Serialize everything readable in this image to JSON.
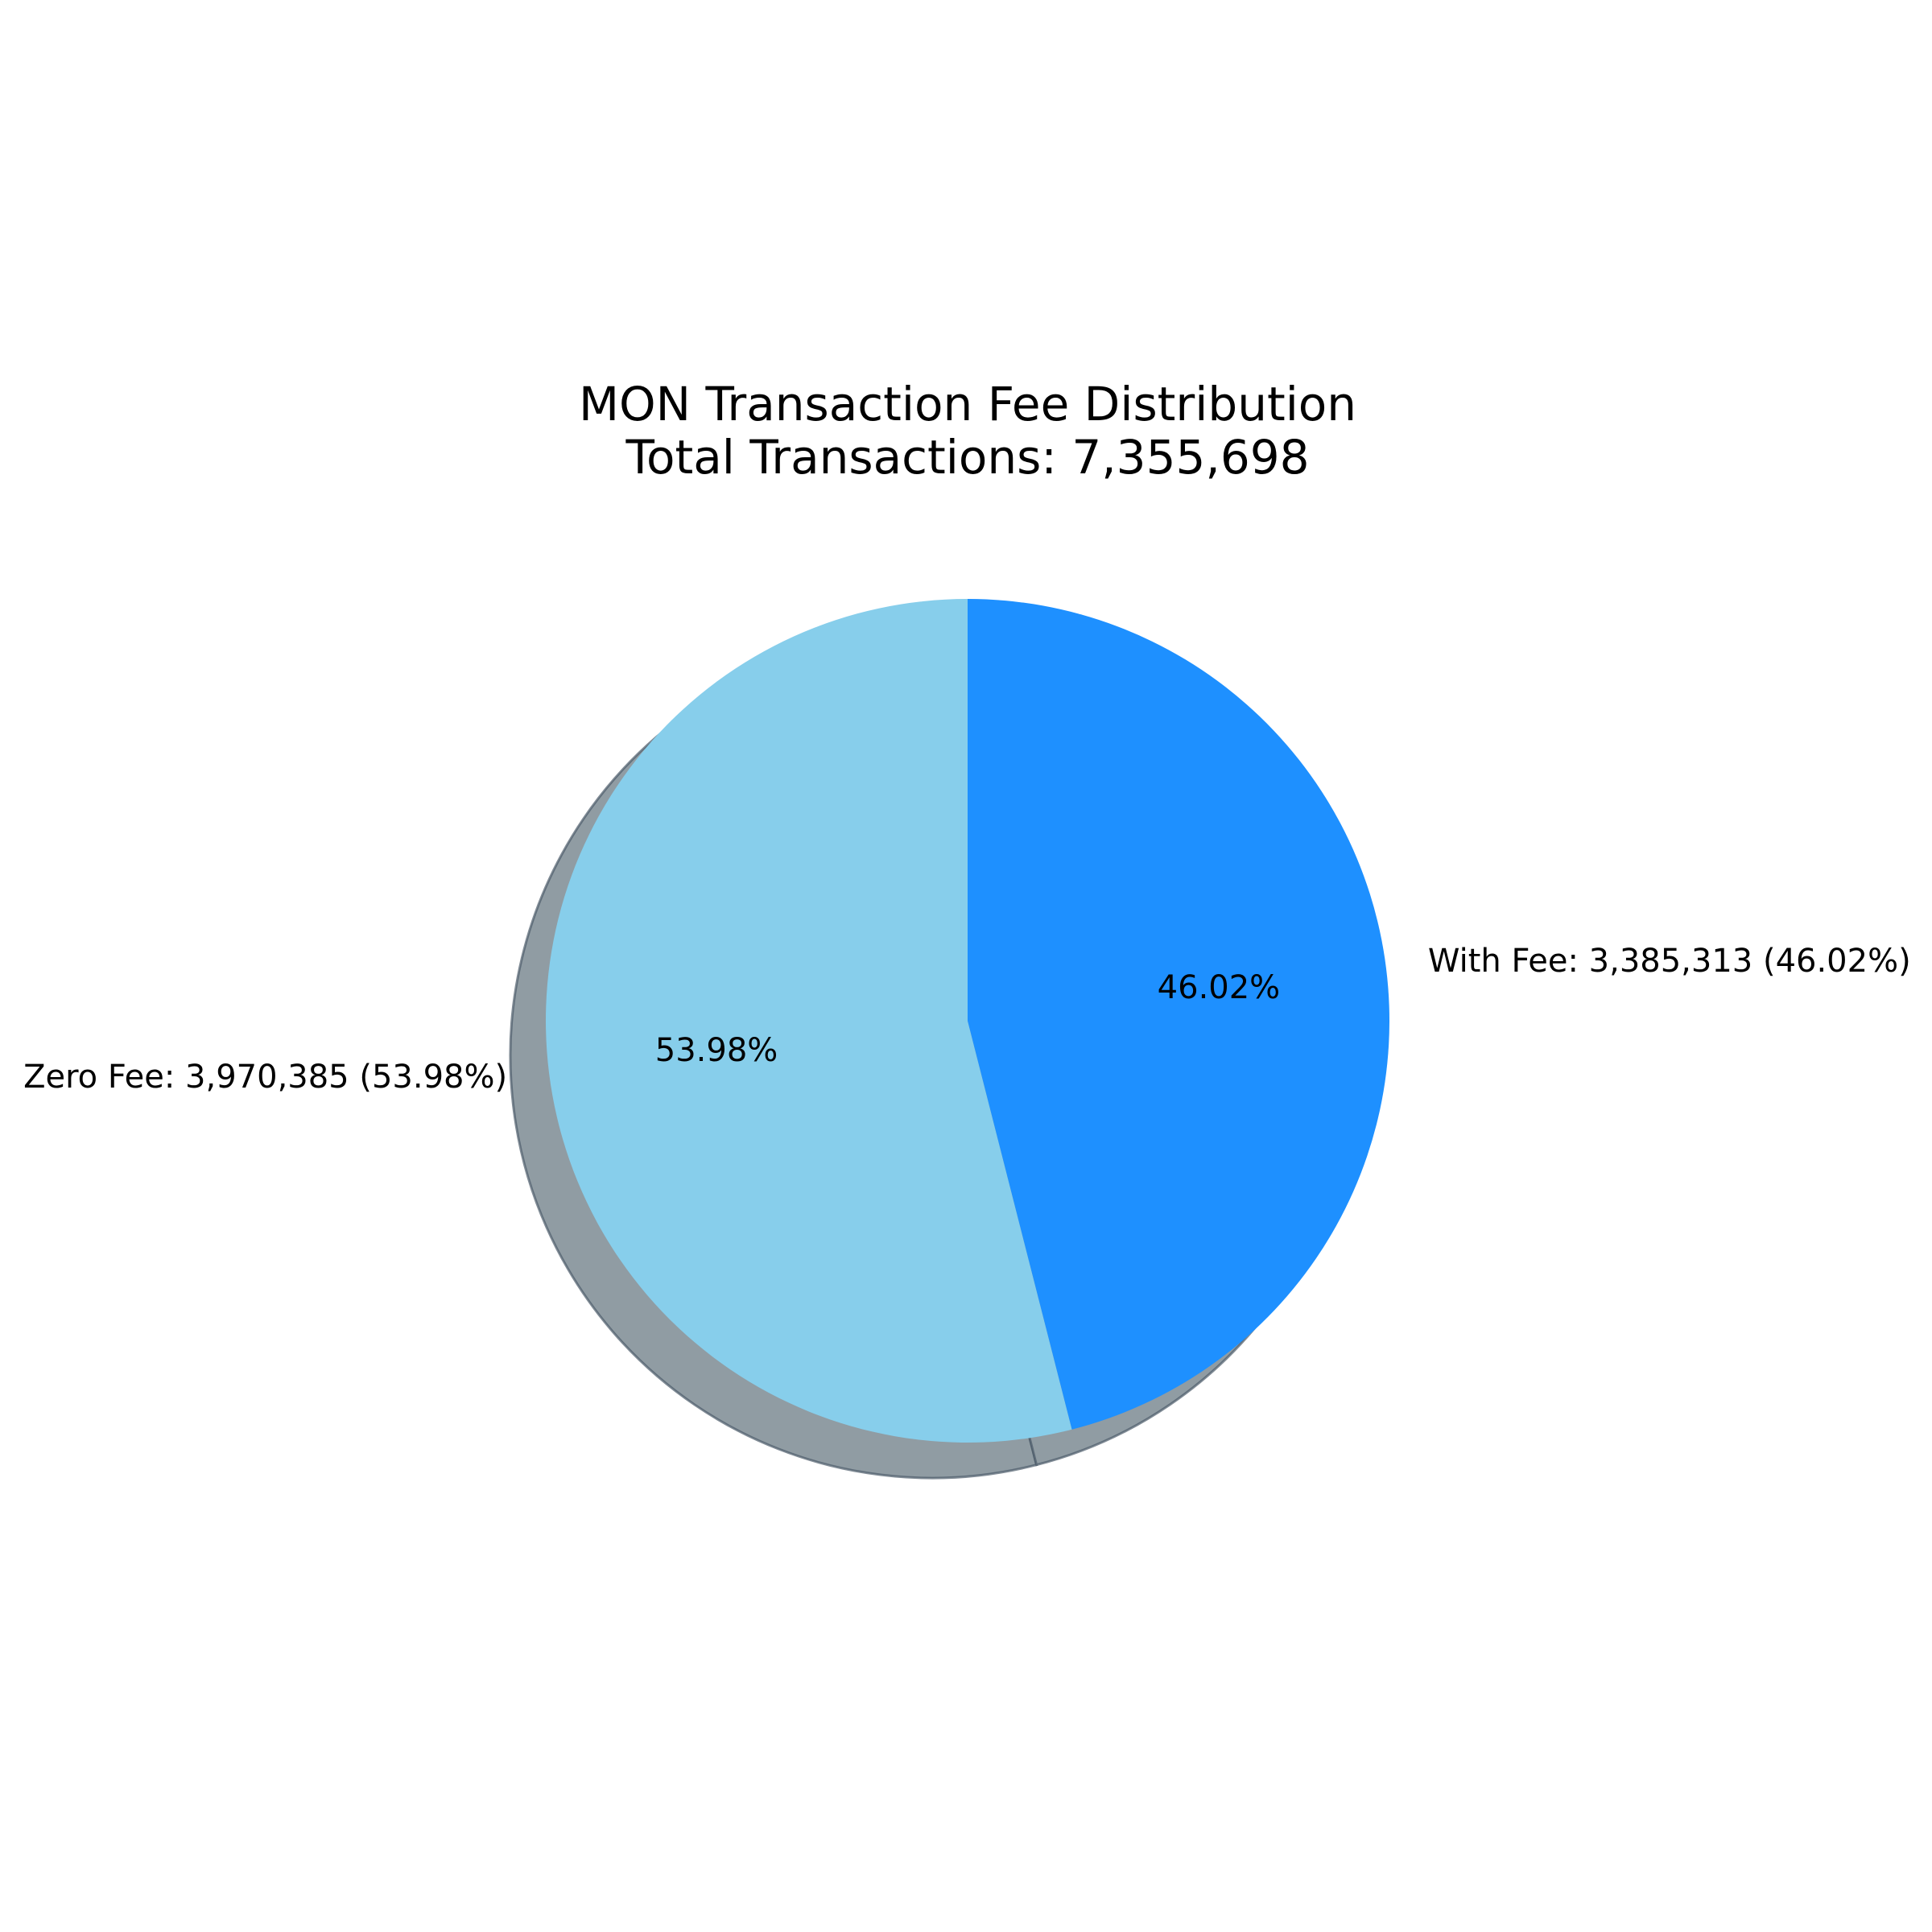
{
  "chart_data": {
    "type": "pie",
    "title": "MON Transaction Fee Distribution",
    "subtitle": "Total Transactions: 7,355,698",
    "slices": [
      {
        "name": "Zero Fee",
        "value": 3970385,
        "percent": 53.98,
        "label": "Zero Fee: 3,970,385 (53.98%)",
        "pct_label": "53.98%",
        "color": "#87CEEB"
      },
      {
        "name": "With Fee",
        "value": 3385313,
        "percent": 46.02,
        "label": "With Fee: 3,385,313 (46.02%)",
        "pct_label": "46.02%",
        "color": "#1E90FF"
      }
    ],
    "shadow": true,
    "shadow_color": "#909CA3",
    "start_angle": "top",
    "direction": "counterclockwise"
  }
}
